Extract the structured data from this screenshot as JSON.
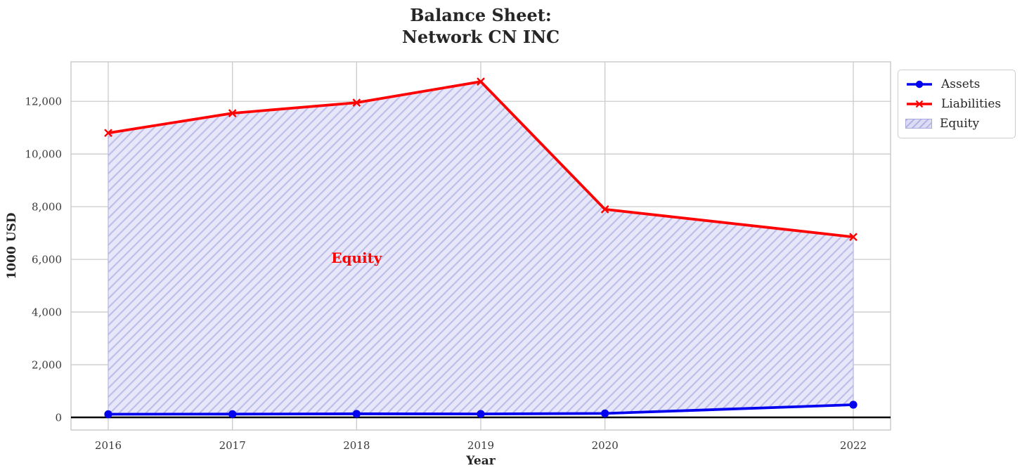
{
  "figure": {
    "title": "Balance Sheet:\nNetwork CN INC",
    "xlabel": "Year",
    "ylabel": "1000 USD"
  },
  "legend": {
    "items": [
      {
        "label": "Assets",
        "swatch": "blue-line-circle-marker"
      },
      {
        "label": "Liabilities",
        "swatch": "red-line-x-marker"
      },
      {
        "label": "Equity",
        "swatch": "lavender-hatched-patch"
      }
    ]
  },
  "chart_data": {
    "type": "area",
    "title": "Balance Sheet:\nNetwork CN INC",
    "xlabel": "Year",
    "ylabel": "1000 USD",
    "x": [
      2016,
      2017,
      2018,
      2019,
      2020,
      2022
    ],
    "x_tick_labels": [
      "2016",
      "2017",
      "2018",
      "2019",
      "2020",
      "2022"
    ],
    "yticks": [
      0,
      2000,
      4000,
      6000,
      8000,
      10000,
      12000
    ],
    "ytick_labels": [
      "0",
      "2,000",
      "4,000",
      "6,000",
      "8,000",
      "10,000",
      "12,000"
    ],
    "xlim": [
      2015.7,
      2022.3
    ],
    "ylim": [
      -480,
      13500
    ],
    "grid": true,
    "series": [
      {
        "name": "Assets",
        "type": "line",
        "color": "#0202ef",
        "marker": "circle",
        "values": [
          120,
          125,
          135,
          130,
          150,
          480
        ]
      },
      {
        "name": "Liabilities",
        "type": "line",
        "color": "#ff0000",
        "marker": "x",
        "values": [
          10800,
          11550,
          11950,
          12750,
          7900,
          6850
        ]
      }
    ],
    "fill_between": {
      "label": "Equity",
      "lower_series": "Assets",
      "upper_series": "Liabilities",
      "facecolor": "#e7e7f9",
      "hatch": "/",
      "hatch_color": "#bdbde9",
      "edgecolor": "#b2b2e2"
    },
    "annotation": {
      "text": "Equity",
      "x": 2018,
      "y": 6050,
      "color": "#ff0000"
    },
    "zero_line": {
      "y": 0,
      "color": "#000000"
    },
    "legend_position": "outside-upper-right",
    "colors": {
      "grid": "#cbcbcb",
      "spine": "#c9c9c9",
      "tick_text": "#3a3a3a",
      "text": "#262626"
    }
  }
}
